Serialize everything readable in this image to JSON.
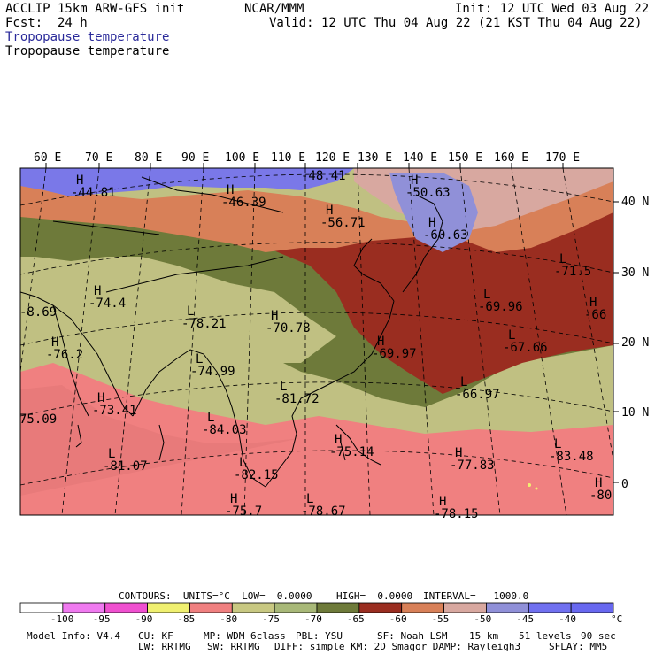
{
  "header": {
    "model": "ACCLIP 15km ARW-GFS init",
    "org": "NCAR/MMM",
    "init": "Init: 12 UTC Wed 03 Aug 22",
    "fcst": "Fcst:  24 h",
    "valid": "Valid: 12 UTC Thu 04 Aug 22 (21 KST Thu 04 Aug 22)",
    "field1": "Tropopause temperature",
    "field2": "Tropopause temperature"
  },
  "axes": {
    "lon_labels": [
      "60 E",
      "70 E",
      "80 E",
      "90 E",
      "100 E",
      "110 E",
      "120 E",
      "130 E",
      "140 E",
      "150 E",
      "160 E",
      "170 E"
    ],
    "lat_labels": [
      "40 N",
      "30 N",
      "20 N",
      "10 N",
      "0"
    ]
  },
  "annotations": [
    {
      "type": "H",
      "value": "-44.81"
    },
    {
      "type": "H",
      "value": "-46.39"
    },
    {
      "type": "",
      "value": "-48.41"
    },
    {
      "type": "H",
      "value": "-50.63"
    },
    {
      "type": "H",
      "value": "-56.71"
    },
    {
      "type": "H",
      "value": "-60.63"
    },
    {
      "type": "L",
      "value": "-71.5"
    },
    {
      "type": "L",
      "value": "-69.96"
    },
    {
      "type": "H",
      "value": "-66"
    },
    {
      "type": "L",
      "value": "-67.66"
    },
    {
      "type": "H",
      "value": "-74.4"
    },
    {
      "type": "",
      "value": "-8.69"
    },
    {
      "type": "L",
      "value": "-78.21"
    },
    {
      "type": "H",
      "value": "-70.78"
    },
    {
      "type": "H",
      "value": "-69.97"
    },
    {
      "type": "H",
      "value": "-76.2"
    },
    {
      "type": "L",
      "value": "-74.99"
    },
    {
      "type": "L",
      "value": "-81.72"
    },
    {
      "type": "L",
      "value": "-66.97"
    },
    {
      "type": "H",
      "value": "-73.41"
    },
    {
      "type": "",
      "value": "75.09"
    },
    {
      "type": "L",
      "value": "-84.03"
    },
    {
      "type": "L",
      "value": "-81.07"
    },
    {
      "type": "L",
      "value": "-82.15"
    },
    {
      "type": "H",
      "value": "-75.14"
    },
    {
      "type": "H",
      "value": "-77.83"
    },
    {
      "type": "L",
      "value": "-83.48"
    },
    {
      "type": "H",
      "value": "-80"
    },
    {
      "type": "H",
      "value": "-75.7"
    },
    {
      "type": "L",
      "value": "-78.67"
    },
    {
      "type": "H",
      "value": "-78.15"
    }
  ],
  "contours_line": {
    "contours": "CONTOURS:  UNITS=°C  LOW=  0.0000",
    "high": "HIGH=  0.0000",
    "interval": "INTERVAL=   1000.0"
  },
  "colorbar": {
    "colors": [
      "#ffffff",
      "#f07af0",
      "#f050d0",
      "#f0f070",
      "#f08080",
      "#c8c882",
      "#a8b878",
      "#6e7a3a",
      "#9a2d20",
      "#d88058",
      "#d8a8a0",
      "#9090d8",
      "#7070f0",
      "#6868f0"
    ],
    "labels": [
      "-100",
      "-95",
      "-90",
      "-85",
      "-80",
      "-75",
      "-70",
      "-65",
      "-60",
      "-55",
      "-50",
      "-45",
      "-40"
    ],
    "unit": "°C"
  },
  "model_info": {
    "line1": [
      "Model Info: V4.4",
      "CU: KF",
      "MP: WDM 6class",
      "PBL: YSU",
      "SF: Noah LSM",
      "15 km",
      "51 levels",
      "90 sec"
    ],
    "line2": [
      "LW: RRTMG",
      "SW: RRTMG",
      "DIFF: simple KM: 2D Smagor DAMP: Rayleigh3",
      "SFLAY: MM5"
    ]
  },
  "band_colors": {
    "lilac": "#7a78e8",
    "salmon_orange": "#d88058",
    "pink_mauve": "#d8a8a0",
    "periwinkle": "#9090d8",
    "dark_red": "#9a2d20",
    "olive": "#6e7a3a",
    "khaki": "#c0c082",
    "pink": "#f08080",
    "yellow": "#f0f070"
  }
}
